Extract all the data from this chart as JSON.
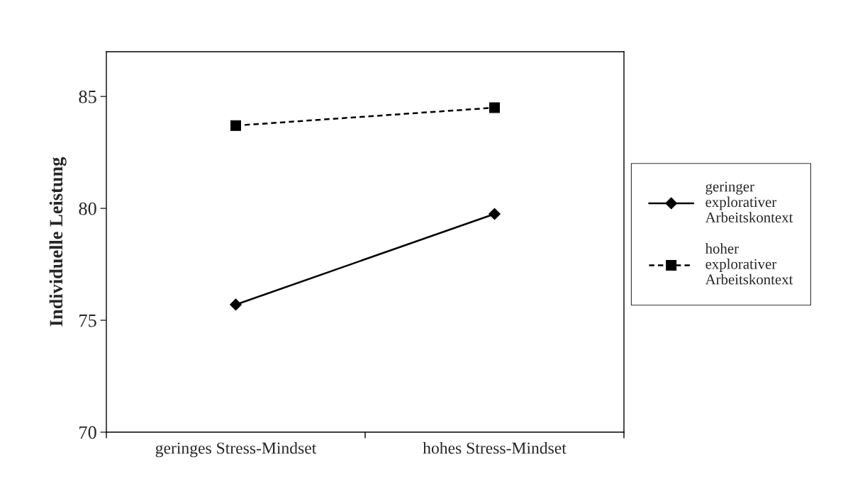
{
  "chart_data": {
    "type": "line",
    "ylabel": "Individuelle Leistung",
    "categories": [
      "geringes Stress-Mindset",
      "hohes Stress-Mindset"
    ],
    "series": [
      {
        "name": "geringer explorativer Arbeitskontext",
        "color": "#000000",
        "values": [
          75.7,
          79.75
        ],
        "marker": "diamond",
        "line_style": "solid"
      },
      {
        "name": "hoher explorativer Arbeitskontext",
        "color": "#000000",
        "values": [
          83.7,
          84.5
        ],
        "marker": "square",
        "line_style": "dashed"
      }
    ],
    "ylim": [
      70,
      87
    ],
    "yticks": [
      70,
      75,
      80,
      85
    ],
    "grid": false,
    "legend": "right"
  }
}
